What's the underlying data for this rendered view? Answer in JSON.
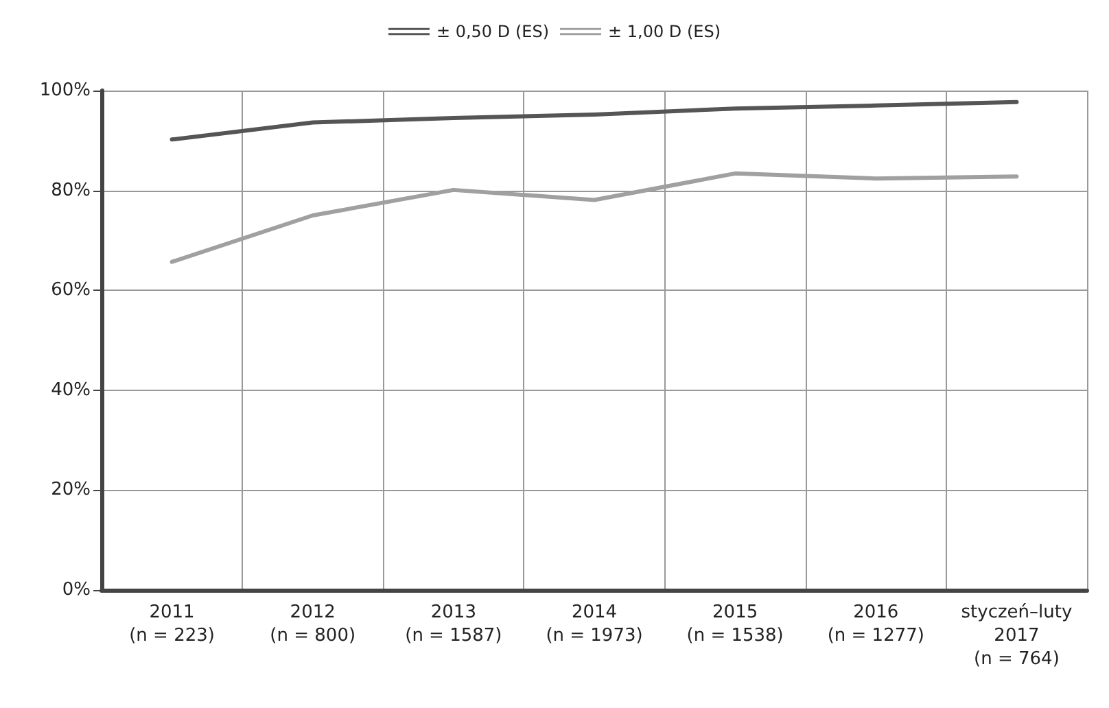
{
  "chart_data": {
    "type": "line",
    "categories": [
      "2011\n(n = 223)",
      "2012\n(n = 800)",
      "2013\n(n = 1587)",
      "2014\n(n = 1973)",
      "2015\n(n = 1538)",
      "2016\n(n = 1277)",
      "styczeń–luty\n2017\n(n = 764)"
    ],
    "series": [
      {
        "name": "± 0,50 D (ES)",
        "color": "#555555",
        "values": [
          90.2,
          93.6,
          94.5,
          95.2,
          96.4,
          97,
          97.7
        ]
      },
      {
        "name": "± 1,00 D (ES)",
        "color": "#a0a0a0",
        "values": [
          65.7,
          75,
          80.1,
          78.1,
          83.4,
          82.4,
          82.8
        ]
      }
    ],
    "ylim": [
      0,
      100
    ],
    "yticks": [
      {
        "value": 0,
        "label": "0%"
      },
      {
        "value": 20,
        "label": "20%"
      },
      {
        "value": 40,
        "label": "40%"
      },
      {
        "value": 60,
        "label": "60%"
      },
      {
        "value": 80,
        "label": "80%"
      },
      {
        "value": 100,
        "label": "100%"
      }
    ],
    "grid": true,
    "legend": "top",
    "marker": "none",
    "line_style": "solid"
  }
}
